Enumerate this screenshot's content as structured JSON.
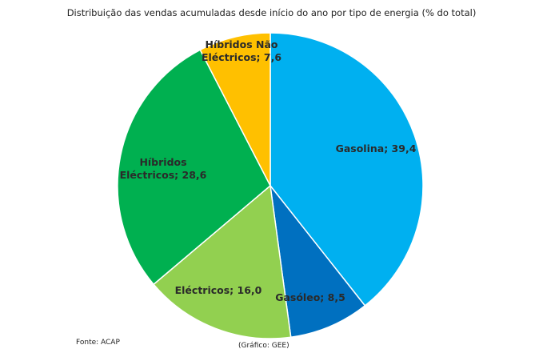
{
  "chart_data": {
    "type": "pie",
    "title": "Distribuição das vendas acumuladas desde início do ano por tipo de energia (% do total)",
    "slices": [
      {
        "name": "Gasolina",
        "value": 39.4,
        "label": [
          "Gasolina; 39,4"
        ],
        "color": "#00B0F0"
      },
      {
        "name": "Gasóleo",
        "value": 8.5,
        "label": [
          "Gasóleo; 8,5"
        ],
        "color": "#0070C0"
      },
      {
        "name": "Eléctricos",
        "value": 16.0,
        "label": [
          "Eléctricos; 16,0"
        ],
        "color": "#92D050"
      },
      {
        "name": "Híbridos Eléctricos",
        "value": 28.6,
        "label": [
          "Híbridos",
          "Eléctricos; 28,6"
        ],
        "color": "#00B050"
      },
      {
        "name": "Híbridos Não Eléctricos",
        "value": 7.6,
        "label": [
          "Híbridos Não",
          "Eléctricos; 7,6"
        ],
        "color": "#FFC000"
      }
    ],
    "legend": "none",
    "source": "Fonte: ACAP",
    "credit": "(Gráfico: GEE)"
  }
}
